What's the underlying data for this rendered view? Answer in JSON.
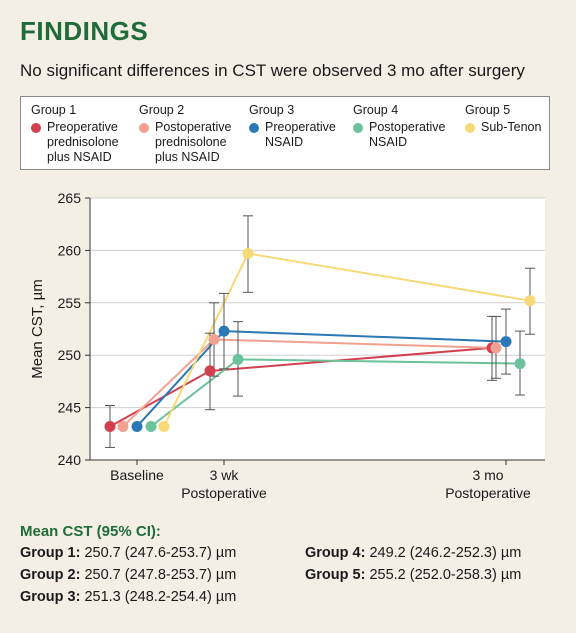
{
  "header": {
    "title": "FINDINGS",
    "subtitle": "No significant differences in CST were observed 3 mo after surgery"
  },
  "legend": [
    {
      "group": "Group 1",
      "lines": [
        "Preoperative",
        "prednisolone",
        "plus NSAID"
      ],
      "color": "#d0404f"
    },
    {
      "group": "Group 2",
      "lines": [
        "Postoperative",
        "prednisolone",
        "plus NSAID"
      ],
      "color": "#f0a18f"
    },
    {
      "group": "Group 3",
      "lines": [
        "Preoperative",
        "NSAID"
      ],
      "color": "#2a78b5"
    },
    {
      "group": "Group 4",
      "lines": [
        "Postoperative",
        "NSAID"
      ],
      "color": "#6cc29a"
    },
    {
      "group": "Group 5",
      "lines": [
        "Sub-Tenon"
      ],
      "color": "#f7d976"
    }
  ],
  "chart_data": {
    "type": "line",
    "ylabel": "Mean CST, µm",
    "ylim": [
      240,
      265
    ],
    "yticks": [
      240,
      245,
      250,
      255,
      260,
      265
    ],
    "x_labels": [
      {
        "lines": [
          "Baseline"
        ]
      },
      {
        "lines": [
          "3 wk",
          "Postoperative"
        ]
      },
      {
        "lines": [
          "3 mo",
          "Postoperative"
        ]
      }
    ],
    "series": [
      {
        "name": "Group 1",
        "color": "#d0404f",
        "values": [
          243.2,
          248.5,
          250.7
        ],
        "err_low": [
          241.2,
          244.8,
          247.6
        ],
        "err_high": [
          245.2,
          252.1,
          253.7
        ]
      },
      {
        "name": "Group 2",
        "color": "#f0a18f",
        "values": [
          243.2,
          251.5,
          250.7
        ],
        "err_low": [
          null,
          248.0,
          247.8
        ],
        "err_high": [
          null,
          255.0,
          253.7
        ]
      },
      {
        "name": "Group 3",
        "color": "#2a78b5",
        "values": [
          243.2,
          252.3,
          251.3
        ],
        "err_low": [
          null,
          248.7,
          248.2
        ],
        "err_high": [
          null,
          255.9,
          254.4
        ]
      },
      {
        "name": "Group 4",
        "color": "#6cc29a",
        "values": [
          243.2,
          249.6,
          249.2
        ],
        "err_low": [
          null,
          246.1,
          246.2
        ],
        "err_high": [
          null,
          253.2,
          252.3
        ]
      },
      {
        "name": "Group 5",
        "color": "#f7d976",
        "values": [
          243.2,
          259.7,
          255.2
        ],
        "err_low": [
          null,
          256.0,
          252.0
        ],
        "err_high": [
          null,
          263.3,
          258.3
        ]
      }
    ]
  },
  "ci": {
    "title": "Mean CST (95% CI):",
    "items": [
      {
        "label": "Group 1:",
        "value": " 250.7 (247.6-253.7) µm"
      },
      {
        "label": "Group 2:",
        "value": " 250.7 (247.8-253.7) µm"
      },
      {
        "label": "Group 3:",
        "value": " 251.3 (248.2-254.4) µm"
      },
      {
        "label": "Group 4:",
        "value": " 249.2 (246.2-252.3) µm"
      },
      {
        "label": "Group 5:",
        "value": " 255.2 (252.0-258.3) µm"
      }
    ]
  }
}
